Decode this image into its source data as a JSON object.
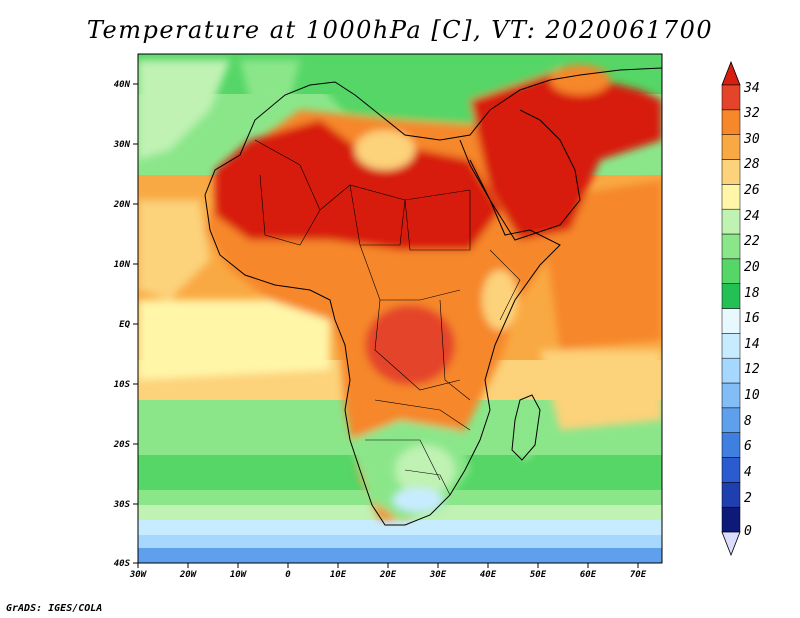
{
  "title": "Temperature at 1000hPa [C], VT: 2020061700",
  "credit": "GrADS: IGES/COLA",
  "map": {
    "lon_ticks": [
      "30W",
      "20W",
      "10W",
      "0",
      "10E",
      "20E",
      "30E",
      "40E",
      "50E",
      "60E",
      "70E"
    ],
    "lat_ticks": [
      "40N",
      "30N",
      "20N",
      "10N",
      "EQ",
      "10S",
      "20S",
      "30S",
      "40S"
    ]
  },
  "colorbar": {
    "levels": [
      "34",
      "32",
      "30",
      "28",
      "26",
      "24",
      "22",
      "20",
      "18",
      "16",
      "14",
      "12",
      "10",
      "8",
      "6",
      "4",
      "2",
      "0"
    ],
    "colors": [
      "#ffffff",
      "#e8f8ff",
      "#c8ecff",
      "#a6d8ff",
      "#82bdf5",
      "#5ea0ec",
      "#3f7fe0",
      "#2a5ccf",
      "#1f3fb0",
      "#0d1a7a",
      "#22c055",
      "#55d666",
      "#8be68a",
      "#bff2b3",
      "#fff6a8",
      "#fcd27a",
      "#f9a943",
      "#f6872a",
      "#e4442a",
      "#d71f0f"
    ]
  }
}
